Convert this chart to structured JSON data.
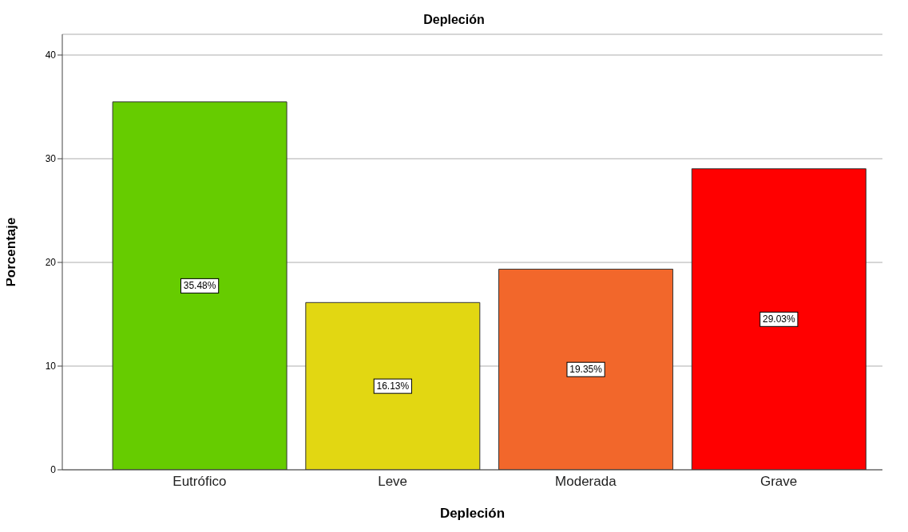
{
  "chart_data": {
    "type": "bar",
    "title": "Depleción",
    "xlabel": "Depleción",
    "ylabel": "Porcentaje",
    "categories": [
      "Eutrófico",
      "Leve",
      "Moderada",
      "Grave"
    ],
    "values": [
      35.48,
      16.13,
      19.35,
      29.03
    ],
    "colors": [
      "#66cc00",
      "#e2d712",
      "#f2672b",
      "#ff0000"
    ],
    "value_labels": [
      "35.48%",
      "16.13%",
      "19.35%",
      "29.03%"
    ],
    "ylim": [
      0,
      42
    ],
    "yticks": [
      0,
      10,
      20,
      30,
      40
    ],
    "grid": "y"
  }
}
